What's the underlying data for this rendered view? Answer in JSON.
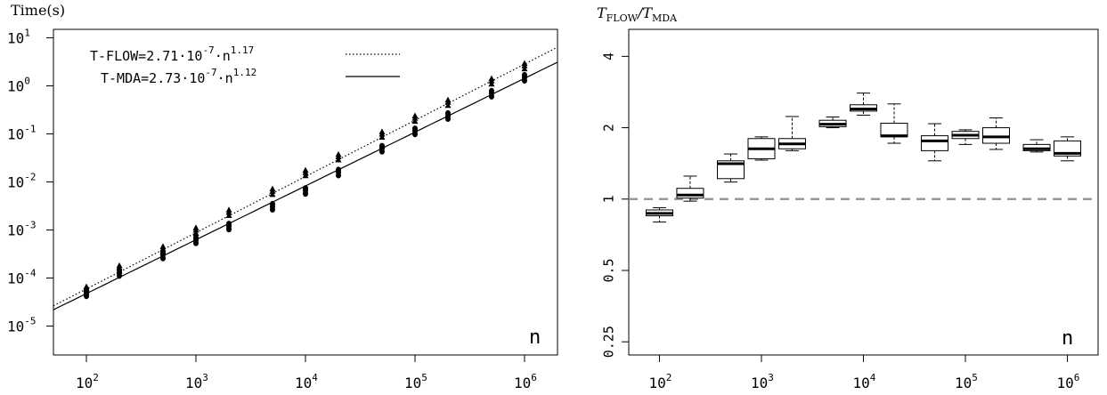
{
  "chart_data": [
    {
      "type": "scatter",
      "ylabel": "Time(s)",
      "xlabel": "n",
      "log_scale": {
        "x": true,
        "y": true
      },
      "xlim": [
        50,
        2000000
      ],
      "ylim": [
        2.5e-06,
        15
      ],
      "grid": false,
      "legend_position": "top-left",
      "x_ticks": [
        {
          "value": 100,
          "base": "10",
          "exp": "2"
        },
        {
          "value": 1000,
          "base": "10",
          "exp": "3"
        },
        {
          "value": 10000,
          "base": "10",
          "exp": "4"
        },
        {
          "value": 100000,
          "base": "10",
          "exp": "5"
        },
        {
          "value": 1000000,
          "base": "10",
          "exp": "6"
        }
      ],
      "y_ticks": [
        {
          "value": 10,
          "base": "10",
          "exp": "1"
        },
        {
          "value": 1,
          "base": "10",
          "exp": "0"
        },
        {
          "value": 0.1,
          "base": "10",
          "exp": "-1"
        },
        {
          "value": 0.01,
          "base": "10",
          "exp": "-2"
        },
        {
          "value": 0.001,
          "base": "10",
          "exp": "-3"
        },
        {
          "value": 0.0001,
          "base": "10",
          "exp": "-4"
        },
        {
          "value": 1e-05,
          "base": "10",
          "exp": "-5"
        }
      ],
      "series": [
        {
          "name": "T-FLOW",
          "legend_prefix": "T-FLOW=2.71·10",
          "legend_coef_exp": "-7",
          "legend_mid": "·n",
          "legend_pow": "1.17",
          "marker": "triangle",
          "line_style": "dotted",
          "fit": {
            "a": 2.71e-07,
            "b": 1.17
          },
          "x": [
            100,
            200,
            500,
            1000,
            2000,
            5000,
            10000,
            20000,
            50000,
            100000,
            200000,
            500000,
            1000000
          ],
          "y": [
            5.8e-05,
            0.00016,
            0.0004,
            0.00098,
            0.0023,
            0.0063,
            0.0155,
            0.033,
            0.098,
            0.21,
            0.45,
            1.25,
            2.6
          ]
        },
        {
          "name": "T-MDA",
          "legend_prefix": "T-MDA=2.73·10",
          "legend_coef_exp": "-7",
          "legend_mid": "·n",
          "legend_pow": "1.12",
          "marker": "circle",
          "line_style": "solid",
          "fit": {
            "a": 2.73e-07,
            "b": 1.12
          },
          "x": [
            100,
            200,
            500,
            1000,
            2000,
            5000,
            10000,
            20000,
            50000,
            100000,
            200000,
            500000,
            1000000
          ],
          "y": [
            4.9e-05,
            0.00013,
            0.0003,
            0.00062,
            0.0012,
            0.0031,
            0.0066,
            0.016,
            0.05,
            0.115,
            0.24,
            0.7,
            1.5
          ]
        }
      ]
    },
    {
      "type": "box",
      "ylabel": "T_FLOW/T_MDA",
      "ylabel_main": "T",
      "ylabel_sub1": "FLOW",
      "ylabel_sep": "/T",
      "ylabel_sub2": "MDA",
      "xlabel": "n",
      "log_scale": {
        "x": true,
        "y": true
      },
      "xlim": [
        50,
        2000000
      ],
      "ylim": [
        0.22,
        5.2
      ],
      "reference_line": 1,
      "x_ticks": [
        {
          "value": 100,
          "base": "10",
          "exp": "2"
        },
        {
          "value": 1000,
          "base": "10",
          "exp": "3"
        },
        {
          "value": 10000,
          "base": "10",
          "exp": "4"
        },
        {
          "value": 100000,
          "base": "10",
          "exp": "5"
        },
        {
          "value": 1000000,
          "base": "10",
          "exp": "6"
        }
      ],
      "y_ticks": [
        {
          "value": 0.25,
          "label": "0.25"
        },
        {
          "value": 0.5,
          "label": "0.5"
        },
        {
          "value": 1,
          "label": "1"
        },
        {
          "value": 2,
          "label": "2"
        },
        {
          "value": 4,
          "label": "4"
        }
      ],
      "boxes": [
        {
          "x": 100,
          "whisker_low": 0.8,
          "q1": 0.85,
          "median": 0.87,
          "q3": 0.9,
          "whisker_high": 0.92
        },
        {
          "x": 200,
          "whisker_low": 0.98,
          "q1": 1.01,
          "median": 1.04,
          "q3": 1.11,
          "whisker_high": 1.25
        },
        {
          "x": 500,
          "whisker_low": 1.18,
          "q1": 1.22,
          "median": 1.41,
          "q3": 1.45,
          "whisker_high": 1.55
        },
        {
          "x": 1000,
          "whisker_low": 1.46,
          "q1": 1.48,
          "median": 1.63,
          "q3": 1.8,
          "whisker_high": 1.83
        },
        {
          "x": 2000,
          "whisker_low": 1.6,
          "q1": 1.63,
          "median": 1.71,
          "q3": 1.8,
          "whisker_high": 2.23
        },
        {
          "x": 5000,
          "whisker_low": 2.0,
          "q1": 2.02,
          "median": 2.07,
          "q3": 2.15,
          "whisker_high": 2.22
        },
        {
          "x": 10000,
          "whisker_low": 2.26,
          "q1": 2.35,
          "median": 2.4,
          "q3": 2.5,
          "whisker_high": 2.8
        },
        {
          "x": 20000,
          "whisker_low": 1.72,
          "q1": 1.83,
          "median": 1.85,
          "q3": 2.09,
          "whisker_high": 2.52
        },
        {
          "x": 50000,
          "whisker_low": 1.45,
          "q1": 1.6,
          "median": 1.76,
          "q3": 1.85,
          "whisker_high": 2.08
        },
        {
          "x": 100000,
          "whisker_low": 1.7,
          "q1": 1.8,
          "median": 1.86,
          "q3": 1.93,
          "whisker_high": 1.96
        },
        {
          "x": 200000,
          "whisker_low": 1.62,
          "q1": 1.72,
          "median": 1.83,
          "q3": 2.0,
          "whisker_high": 2.2
        },
        {
          "x": 500000,
          "whisker_low": 1.58,
          "q1": 1.6,
          "median": 1.63,
          "q3": 1.7,
          "whisker_high": 1.78
        },
        {
          "x": 1000000,
          "whisker_low": 1.45,
          "q1": 1.52,
          "median": 1.56,
          "q3": 1.76,
          "whisker_high": 1.83
        }
      ]
    }
  ],
  "colors": {
    "axis": "#000000",
    "reference_line": "#999999"
  }
}
